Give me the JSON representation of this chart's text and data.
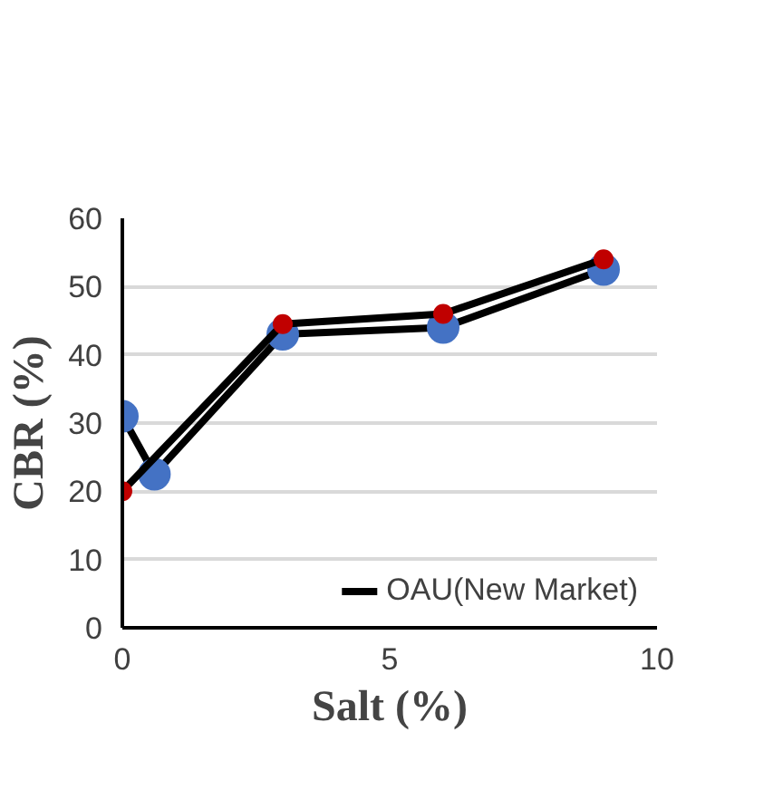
{
  "chart_data": {
    "type": "line",
    "xlabel": "Salt (%)",
    "ylabel": "CBR (%)",
    "xlim": [
      0,
      10
    ],
    "xticks": [
      0,
      5,
      10
    ],
    "ylim": [
      0,
      60
    ],
    "yticks": [
      0,
      10,
      20,
      30,
      40,
      50,
      60
    ],
    "grid": "y",
    "legend": "bottom right",
    "marker": "circle",
    "line_style": "solid",
    "series": [
      {
        "name": "OAU(New Market)",
        "color": "#000000",
        "colors": [
          "#4472c4",
          "#4472c4",
          "#4472c4",
          "#4472c4",
          "#4472c4"
        ],
        "x": [
          0,
          0.6,
          3,
          6,
          9
        ],
        "values": [
          31,
          22.5,
          43,
          44,
          52.5
        ]
      },
      {
        "color": "#000000",
        "colors": [
          "#c00000",
          "#c00000",
          "#c00000",
          "#c00000"
        ],
        "x": [
          0,
          3,
          6,
          9
        ],
        "values": [
          20,
          44.5,
          46,
          54
        ]
      }
    ]
  }
}
